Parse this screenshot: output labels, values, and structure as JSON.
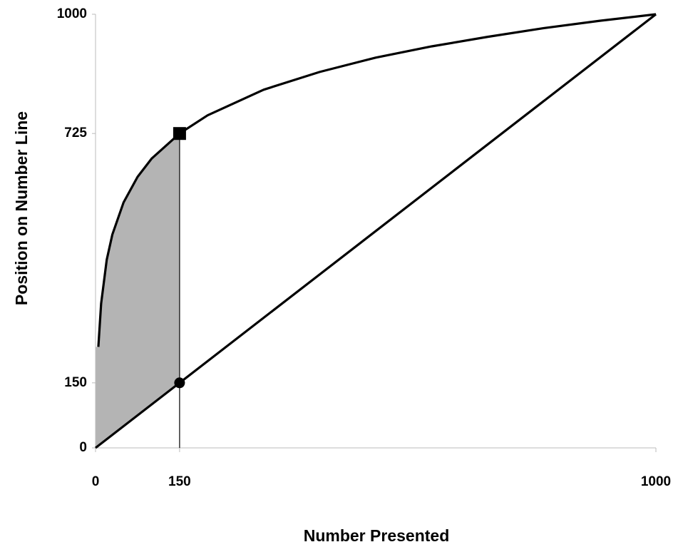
{
  "chart_data": {
    "type": "line",
    "x_label": "Number Presented",
    "y_label": "Position on Number Line",
    "xlim": [
      0,
      1000
    ],
    "ylim": [
      0,
      1000
    ],
    "xticks": [
      0,
      150,
      1000
    ],
    "yticks": [
      0,
      150,
      725,
      1000
    ],
    "series": [
      {
        "color": "#000000",
        "x": [
          5,
          10,
          20,
          30,
          50,
          75,
          100,
          150,
          200,
          300,
          400,
          500,
          600,
          700,
          800,
          900,
          1000
        ],
        "values": [
          233,
          333,
          434,
          492,
          566,
          625,
          667,
          725,
          767,
          826,
          867,
          900,
          926,
          948,
          968,
          985,
          1000
        ]
      },
      {
        "color": "#000000",
        "x": [
          0,
          1000
        ],
        "values": [
          0,
          1000
        ]
      }
    ],
    "points": [
      {
        "x": 150,
        "y": 725,
        "marker": "square"
      },
      {
        "x": 150,
        "y": 150,
        "marker": "circle"
      }
    ],
    "shade": {
      "color": "#b4b4b4",
      "x": [
        0,
        150
      ]
    }
  }
}
